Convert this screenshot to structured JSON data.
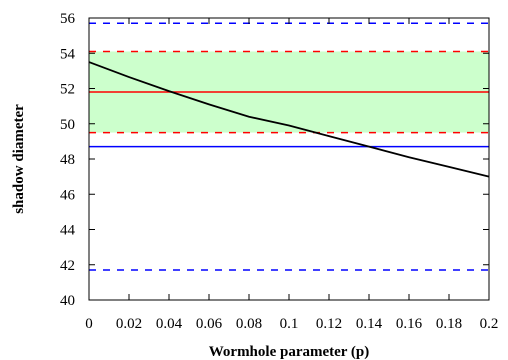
{
  "chart_data": {
    "type": "line",
    "title": "",
    "xlabel": "Wormhole parameter (p)",
    "ylabel": "shadow diameter",
    "xlim": [
      0,
      0.2
    ],
    "ylim": [
      40,
      56
    ],
    "xticks": [
      0,
      0.02,
      0.04,
      0.06,
      0.08,
      0.1,
      0.12,
      0.14,
      0.16,
      0.18,
      0.2
    ],
    "xtick_labels": [
      "0",
      "0.02",
      "0.04",
      "0.06",
      "0.08",
      "0.1",
      "0.12",
      "0.14",
      "0.16",
      "0.18",
      "0.2"
    ],
    "yticks": [
      40,
      42,
      44,
      46,
      48,
      50,
      52,
      54,
      56
    ],
    "ytick_labels": [
      "40",
      "42",
      "44",
      "46",
      "48",
      "50",
      "52",
      "54",
      "56"
    ],
    "grid": false,
    "legend": "none",
    "series": [
      {
        "color": "#000000",
        "x": [
          0,
          0.02,
          0.04,
          0.06,
          0.08,
          0.1,
          0.12,
          0.14,
          0.16,
          0.18,
          0.2
        ],
        "y": [
          53.5,
          52.65,
          51.85,
          51.1,
          50.4,
          49.9,
          49.3,
          48.7,
          48.1,
          47.55,
          47.0
        ]
      }
    ],
    "horizontal_lines": [
      {
        "y": 51.8,
        "color": "#ff0000",
        "style": "solid"
      },
      {
        "y": 54.1,
        "color": "#ff0000",
        "style": "dashed"
      },
      {
        "y": 49.5,
        "color": "#ff0000",
        "style": "dashed"
      },
      {
        "y": 48.7,
        "color": "#0000ff",
        "style": "solid"
      },
      {
        "y": 55.7,
        "color": "#0000ff",
        "style": "dashed"
      },
      {
        "y": 41.7,
        "color": "#0000ff",
        "style": "dashed"
      }
    ],
    "bands": [
      {
        "y0": 49.5,
        "y1": 54.1,
        "color": "#ccffcc"
      }
    ]
  }
}
